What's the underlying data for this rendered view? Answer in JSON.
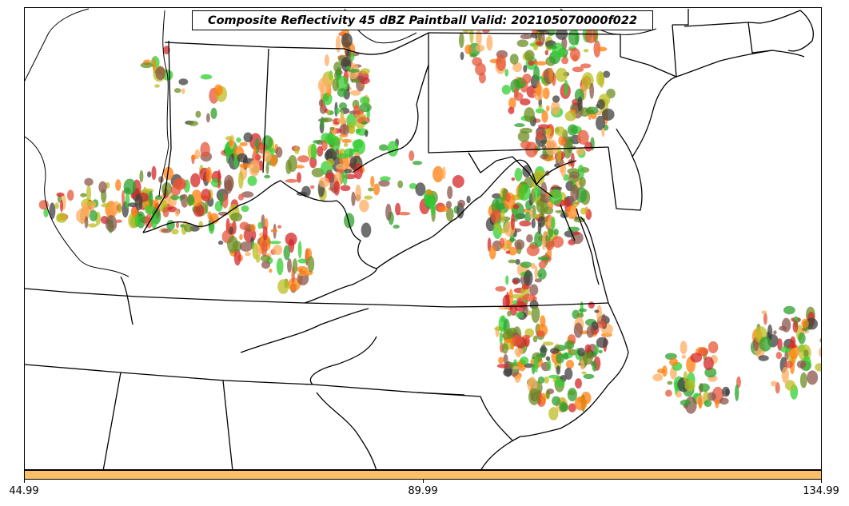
{
  "title": "Composite Reflectivity 45 dBZ Paintball Valid: 202105070000f022",
  "colorbar": {
    "color": "#fbbf68",
    "ticks": [
      "44.99",
      "89.99",
      "134.99"
    ]
  },
  "paintball_colors": [
    "#d62728",
    "#ff7f0e",
    "#2ca02c",
    "#8c564b",
    "#bcbd22",
    "#32cd32",
    "#fdae61",
    "#404040",
    "#6b8e23",
    "#e6553a"
  ]
}
